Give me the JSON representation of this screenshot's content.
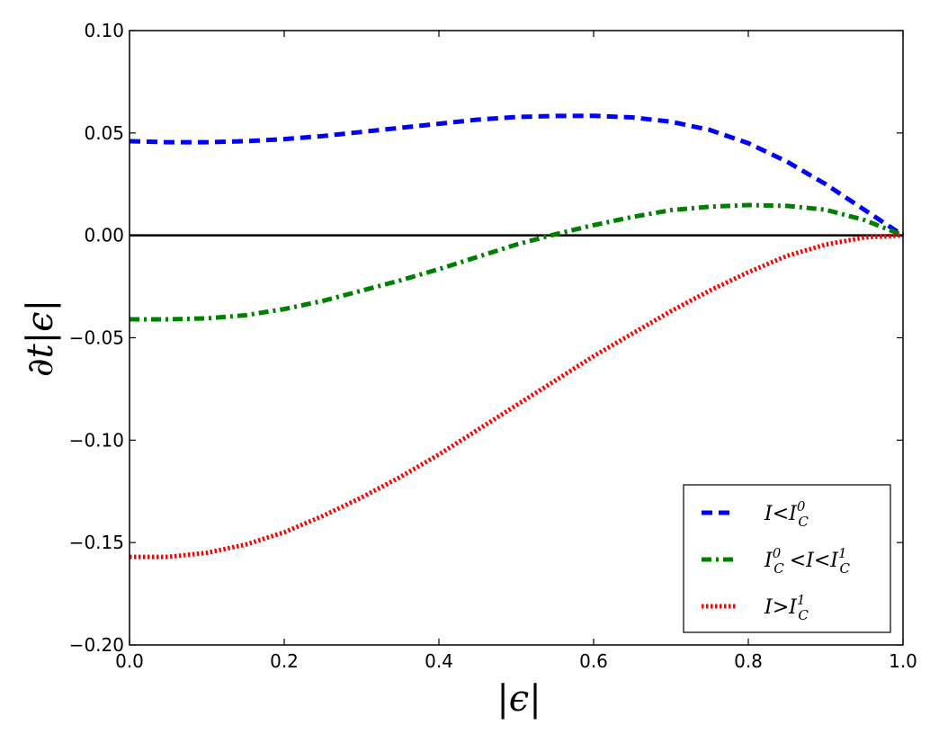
{
  "chart_data": {
    "type": "line",
    "xlabel": "|ϵ|",
    "ylabel": "∂t|ϵ|",
    "xlim": [
      0.0,
      1.0
    ],
    "ylim": [
      -0.2,
      0.1
    ],
    "x_ticks": [
      "0.0",
      "0.2",
      "0.4",
      "0.6",
      "0.8",
      "1.0"
    ],
    "y_ticks": [
      "0.10",
      "0.05",
      "0.00",
      "−0.05",
      "−0.10",
      "−0.15",
      "−0.20"
    ],
    "x_tick_values": [
      0.0,
      0.2,
      0.4,
      0.6,
      0.8,
      1.0
    ],
    "y_tick_values": [
      0.1,
      0.05,
      0.0,
      -0.05,
      -0.1,
      -0.15,
      -0.2
    ],
    "grid": false,
    "legend_position": "lower-right",
    "reference_line": {
      "y": 0.0,
      "color": "#000000"
    },
    "x": [
      0.0,
      0.05,
      0.1,
      0.15,
      0.2,
      0.25,
      0.3,
      0.35,
      0.4,
      0.45,
      0.5,
      0.55,
      0.6,
      0.65,
      0.7,
      0.75,
      0.8,
      0.85,
      0.9,
      0.95,
      1.0
    ],
    "series": [
      {
        "name": "I < I_C^0",
        "legend_main": "I<I",
        "legend_sub": "C",
        "legend_sup": "0",
        "legend_tail": "",
        "color": "#0000ff",
        "style": "dashed",
        "values": [
          0.046,
          0.0455,
          0.0455,
          0.046,
          0.047,
          0.0485,
          0.0505,
          0.0525,
          0.0545,
          0.0565,
          0.0578,
          0.0583,
          0.0584,
          0.0576,
          0.0555,
          0.0515,
          0.045,
          0.036,
          0.025,
          0.0125,
          0.0
        ]
      },
      {
        "name": "I_C^0 < I < I_C^1",
        "legend_main": "I",
        "legend_sub": "C",
        "legend_sup": "0",
        "legend_tail": "<I<I",
        "legend_sub2": "C",
        "legend_sup2": "1",
        "color": "#008000",
        "style": "dashdot",
        "values": [
          -0.041,
          -0.041,
          -0.0405,
          -0.039,
          -0.036,
          -0.032,
          -0.027,
          -0.022,
          -0.0165,
          -0.0105,
          -0.0045,
          0.0005,
          0.005,
          0.009,
          0.0123,
          0.014,
          0.0148,
          0.0144,
          0.0125,
          0.0075,
          0.0
        ]
      },
      {
        "name": "I > I_C^1",
        "legend_main": "I>I",
        "legend_sub": "C",
        "legend_sup": "1",
        "legend_tail": "",
        "color": "#ff0000",
        "style": "dotted",
        "values": [
          -0.157,
          -0.157,
          -0.155,
          -0.151,
          -0.145,
          -0.137,
          -0.128,
          -0.118,
          -0.107,
          -0.095,
          -0.083,
          -0.071,
          -0.059,
          -0.048,
          -0.037,
          -0.027,
          -0.018,
          -0.01,
          -0.0045,
          -0.001,
          0.0
        ]
      }
    ]
  }
}
